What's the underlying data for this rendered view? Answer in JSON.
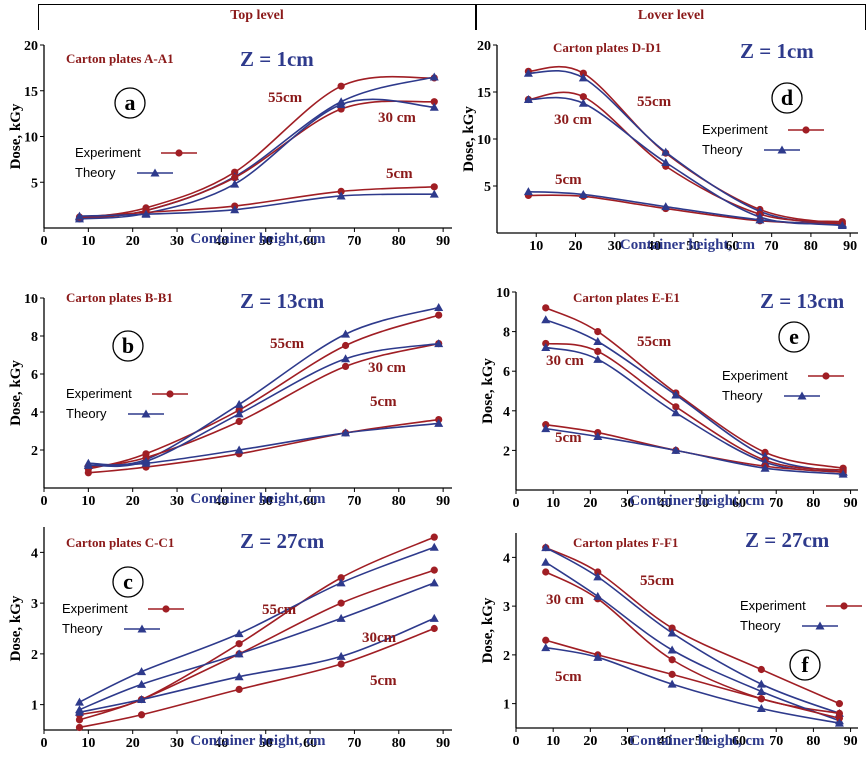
{
  "header": {
    "top": "Top level",
    "lower": "Lover level"
  },
  "chart_data": [
    {
      "id": "a",
      "type": "line",
      "panel_label": "a",
      "subtitle": "Carton plates   A-A1",
      "z_label": "Z = 1cm",
      "xlabel": "Container height, cm",
      "ylabel": "Dose, kGy",
      "xlim": [
        0,
        92
      ],
      "ylim": [
        0,
        20
      ],
      "xticks": [
        0,
        10,
        20,
        30,
        40,
        50,
        60,
        70,
        80,
        90
      ],
      "yticks": [
        5,
        10,
        15,
        20
      ],
      "legend": {
        "experiment": "Experiment",
        "theory": "Theory"
      },
      "series": [
        {
          "label": "55cm",
          "kind": "Experiment",
          "x": [
            8,
            23,
            43,
            67,
            88
          ],
          "y": [
            1.1,
            2.2,
            6.1,
            15.5,
            16.4
          ]
        },
        {
          "label": "55cm",
          "kind": "Theory",
          "x": [
            8,
            23,
            43,
            67,
            88
          ],
          "y": [
            1.2,
            1.9,
            5.6,
            13.8,
            16.5
          ]
        },
        {
          "label": "30 cm",
          "kind": "Experiment",
          "x": [
            8,
            23,
            43,
            67,
            88
          ],
          "y": [
            1.0,
            1.9,
            5.5,
            13.0,
            13.8
          ]
        },
        {
          "label": "30 cm",
          "kind": "Theory",
          "x": [
            8,
            23,
            43,
            67,
            88
          ],
          "y": [
            1.0,
            1.6,
            4.8,
            13.5,
            13.2
          ]
        },
        {
          "label": "5cm",
          "kind": "Experiment",
          "x": [
            8,
            23,
            43,
            67,
            88
          ],
          "y": [
            1.2,
            1.7,
            2.4,
            4.0,
            4.5
          ]
        },
        {
          "label": "5cm",
          "kind": "Theory",
          "x": [
            8,
            23,
            43,
            67,
            88
          ],
          "y": [
            1.3,
            1.5,
            2.0,
            3.5,
            3.7
          ]
        }
      ],
      "annotations": [
        "55cm",
        "30 cm",
        "5cm"
      ]
    },
    {
      "id": "d",
      "type": "line",
      "panel_label": "d",
      "subtitle": "Carton plates  D-D1",
      "z_label": "Z = 1cm",
      "xlabel": "Container height, cm",
      "ylabel": "Dose, kGy",
      "xlim": [
        0,
        92
      ],
      "ylim": [
        0,
        20
      ],
      "xticks": [
        10,
        20,
        30,
        40,
        50,
        60,
        70,
        80,
        90
      ],
      "yticks": [
        5,
        10,
        15,
        20
      ],
      "legend": {
        "experiment": "Experiment",
        "theory": "Theory"
      },
      "series": [
        {
          "label": "55cm",
          "kind": "Experiment",
          "x": [
            8,
            22,
            43,
            67,
            88
          ],
          "y": [
            17.2,
            17.0,
            8.5,
            2.5,
            1.0
          ]
        },
        {
          "label": "55cm",
          "kind": "Theory",
          "x": [
            8,
            22,
            43,
            67,
            88
          ],
          "y": [
            17.0,
            16.5,
            8.6,
            2.3,
            0.9
          ]
        },
        {
          "label": "30 cm",
          "kind": "Experiment",
          "x": [
            8,
            22,
            43,
            67,
            88
          ],
          "y": [
            14.2,
            14.5,
            7.1,
            2.0,
            1.2
          ]
        },
        {
          "label": "30 cm",
          "kind": "Theory",
          "x": [
            8,
            22,
            43,
            67,
            88
          ],
          "y": [
            14.2,
            13.8,
            7.5,
            1.7,
            1.0
          ]
        },
        {
          "label": "5cm",
          "kind": "Experiment",
          "x": [
            8,
            22,
            43,
            67,
            88
          ],
          "y": [
            4.0,
            3.9,
            2.6,
            1.3,
            1.0
          ]
        },
        {
          "label": "5cm",
          "kind": "Theory",
          "x": [
            8,
            22,
            43,
            67,
            88
          ],
          "y": [
            4.4,
            4.1,
            2.8,
            1.4,
            0.8
          ]
        }
      ],
      "annotations": [
        "55cm",
        "30 cm",
        "5cm"
      ]
    },
    {
      "id": "b",
      "type": "line",
      "panel_label": "b",
      "subtitle": "Carton plates   B-B1",
      "z_label": "Z = 13cm",
      "xlabel": "Container height, cm",
      "ylabel": "Dose, kGy",
      "xlim": [
        0,
        92
      ],
      "ylim": [
        0,
        10
      ],
      "xticks": [
        0,
        10,
        20,
        30,
        40,
        50,
        60,
        70,
        80,
        90
      ],
      "yticks": [
        2,
        4,
        6,
        8,
        10
      ],
      "legend": {
        "experiment": "Experiment",
        "theory": "Theory"
      },
      "series": [
        {
          "label": "55cm",
          "kind": "Experiment",
          "x": [
            10,
            23,
            44,
            68,
            89
          ],
          "y": [
            1.0,
            1.8,
            4.1,
            7.5,
            9.1
          ]
        },
        {
          "label": "55cm",
          "kind": "Theory",
          "x": [
            10,
            23,
            44,
            68,
            89
          ],
          "y": [
            1.3,
            1.5,
            4.4,
            8.1,
            9.5
          ]
        },
        {
          "label": "30 cm",
          "kind": "Experiment",
          "x": [
            10,
            23,
            44,
            68,
            89
          ],
          "y": [
            1.1,
            1.6,
            3.5,
            6.4,
            7.6
          ]
        },
        {
          "label": "30 cm",
          "kind": "Theory",
          "x": [
            10,
            23,
            44,
            68,
            89
          ],
          "y": [
            1.2,
            1.4,
            3.9,
            6.8,
            7.6
          ]
        },
        {
          "label": "5cm",
          "kind": "Experiment",
          "x": [
            10,
            23,
            44,
            68,
            89
          ],
          "y": [
            0.8,
            1.1,
            1.8,
            2.9,
            3.6
          ]
        },
        {
          "label": "5cm",
          "kind": "Theory",
          "x": [
            10,
            23,
            44,
            68,
            89
          ],
          "y": [
            1.2,
            1.3,
            2.0,
            2.9,
            3.4
          ]
        }
      ],
      "annotations": [
        "55cm",
        "30 cm",
        "5cm"
      ]
    },
    {
      "id": "e",
      "type": "line",
      "panel_label": "e",
      "subtitle": "Carton plates  E-E1",
      "z_label": "Z = 13cm",
      "xlabel": "Container height, cm",
      "ylabel": "Dose, kGy",
      "xlim": [
        0,
        92
      ],
      "ylim": [
        0,
        10
      ],
      "xticks": [
        0,
        10,
        20,
        30,
        40,
        50,
        60,
        70,
        80,
        90
      ],
      "yticks": [
        2,
        4,
        6,
        8,
        10
      ],
      "legend": {
        "experiment": "Experiment",
        "theory": "Theory"
      },
      "series": [
        {
          "label": "55cm",
          "kind": "Experiment",
          "x": [
            8,
            22,
            43,
            67,
            88
          ],
          "y": [
            9.2,
            8.0,
            4.9,
            1.9,
            1.1
          ]
        },
        {
          "label": "55cm",
          "kind": "Theory",
          "x": [
            8,
            22,
            43,
            67,
            88
          ],
          "y": [
            8.6,
            7.5,
            4.8,
            1.7,
            0.9
          ]
        },
        {
          "label": "30 cm",
          "kind": "Experiment",
          "x": [
            8,
            22,
            43,
            67,
            88
          ],
          "y": [
            7.4,
            7.0,
            4.2,
            1.5,
            1.0
          ]
        },
        {
          "label": "30 cm",
          "kind": "Theory",
          "x": [
            8,
            22,
            43,
            67,
            88
          ],
          "y": [
            7.2,
            6.6,
            3.9,
            1.4,
            0.9
          ]
        },
        {
          "label": "5cm",
          "kind": "Experiment",
          "x": [
            8,
            22,
            43,
            67,
            88
          ],
          "y": [
            3.3,
            2.9,
            2.0,
            1.2,
            0.9
          ]
        },
        {
          "label": "5cm",
          "kind": "Theory",
          "x": [
            8,
            22,
            43,
            67,
            88
          ],
          "y": [
            3.1,
            2.7,
            2.0,
            1.1,
            0.8
          ]
        }
      ],
      "annotations": [
        "55cm",
        "30 cm",
        "5cm"
      ]
    },
    {
      "id": "c",
      "type": "line",
      "panel_label": "c",
      "subtitle": "Carton plates    C-C1",
      "z_label": "Z = 27cm",
      "xlabel": "Container height, cm",
      "ylabel": "Dose, kGy",
      "xlim": [
        0,
        92
      ],
      "ylim": [
        0.5,
        4.5
      ],
      "xticks": [
        0,
        10,
        20,
        30,
        40,
        50,
        60,
        70,
        80,
        90
      ],
      "yticks": [
        1,
        2,
        3,
        4
      ],
      "legend": {
        "experiment": "Experiment",
        "theory": "Theory"
      },
      "series": [
        {
          "label": "55cm",
          "kind": "Experiment",
          "x": [
            8,
            22,
            44,
            67,
            88
          ],
          "y": [
            0.8,
            1.1,
            2.2,
            3.5,
            4.3
          ]
        },
        {
          "label": "55cm",
          "kind": "Theory",
          "x": [
            8,
            22,
            44,
            67,
            88
          ],
          "y": [
            1.05,
            1.65,
            2.4,
            3.4,
            4.1
          ]
        },
        {
          "label": "30 cm",
          "kind": "Experiment",
          "x": [
            8,
            22,
            44,
            67,
            88
          ],
          "y": [
            0.7,
            1.1,
            2.0,
            3.0,
            3.65
          ]
        },
        {
          "label": "30 cm",
          "kind": "Theory",
          "x": [
            8,
            22,
            44,
            67,
            88
          ],
          "y": [
            0.9,
            1.4,
            2.0,
            2.7,
            3.4
          ]
        },
        {
          "label": "5cm",
          "kind": "Experiment",
          "x": [
            8,
            22,
            44,
            67,
            88
          ],
          "y": [
            0.55,
            0.8,
            1.3,
            1.8,
            2.5
          ]
        },
        {
          "label": "5cm",
          "kind": "Theory",
          "x": [
            8,
            22,
            44,
            67,
            88
          ],
          "y": [
            0.85,
            1.1,
            1.55,
            1.95,
            2.7
          ]
        }
      ],
      "annotations": [
        "55cm",
        "30cm",
        "5cm"
      ]
    },
    {
      "id": "f",
      "type": "line",
      "panel_label": "f",
      "subtitle": "Carton plates   F-F1",
      "z_label": "Z = 27cm",
      "xlabel": "Container height, cm",
      "ylabel": "Dose, kGy",
      "xlim": [
        0,
        92
      ],
      "ylim": [
        0.5,
        4.5
      ],
      "xticks": [
        0,
        10,
        20,
        30,
        40,
        50,
        60,
        70,
        80,
        90
      ],
      "yticks": [
        1,
        2,
        3,
        4
      ],
      "legend": {
        "experiment": "Experiment",
        "theory": "Theory"
      },
      "series": [
        {
          "label": "55cm",
          "kind": "Experiment",
          "x": [
            8,
            22,
            42,
            66,
            87
          ],
          "y": [
            4.2,
            3.7,
            2.55,
            1.7,
            1.0
          ]
        },
        {
          "label": "55cm",
          "kind": "Theory",
          "x": [
            8,
            22,
            42,
            66,
            87
          ],
          "y": [
            4.2,
            3.6,
            2.45,
            1.4,
            0.8
          ]
        },
        {
          "label": "30 cm",
          "kind": "Experiment",
          "x": [
            8,
            22,
            42,
            66,
            87
          ],
          "y": [
            3.7,
            3.15,
            1.9,
            1.1,
            0.8
          ]
        },
        {
          "label": "30 cm",
          "kind": "Theory",
          "x": [
            8,
            22,
            42,
            66,
            87
          ],
          "y": [
            3.9,
            3.2,
            2.1,
            1.25,
            0.65
          ]
        },
        {
          "label": "5cm",
          "kind": "Experiment",
          "x": [
            8,
            22,
            42,
            66,
            87
          ],
          "y": [
            2.3,
            2.0,
            1.6,
            1.1,
            0.7
          ]
        },
        {
          "label": "5cm",
          "kind": "Theory",
          "x": [
            8,
            22,
            42,
            66,
            87
          ],
          "y": [
            2.15,
            1.95,
            1.4,
            0.9,
            0.6
          ]
        }
      ],
      "annotations": [
        "55cm",
        "30 cm",
        "5cm"
      ]
    }
  ],
  "colors": {
    "experiment": "#A01E24",
    "theory": "#2E3A8C",
    "title": "#2E3A8C",
    "subtitle": "#8B1A1A"
  }
}
